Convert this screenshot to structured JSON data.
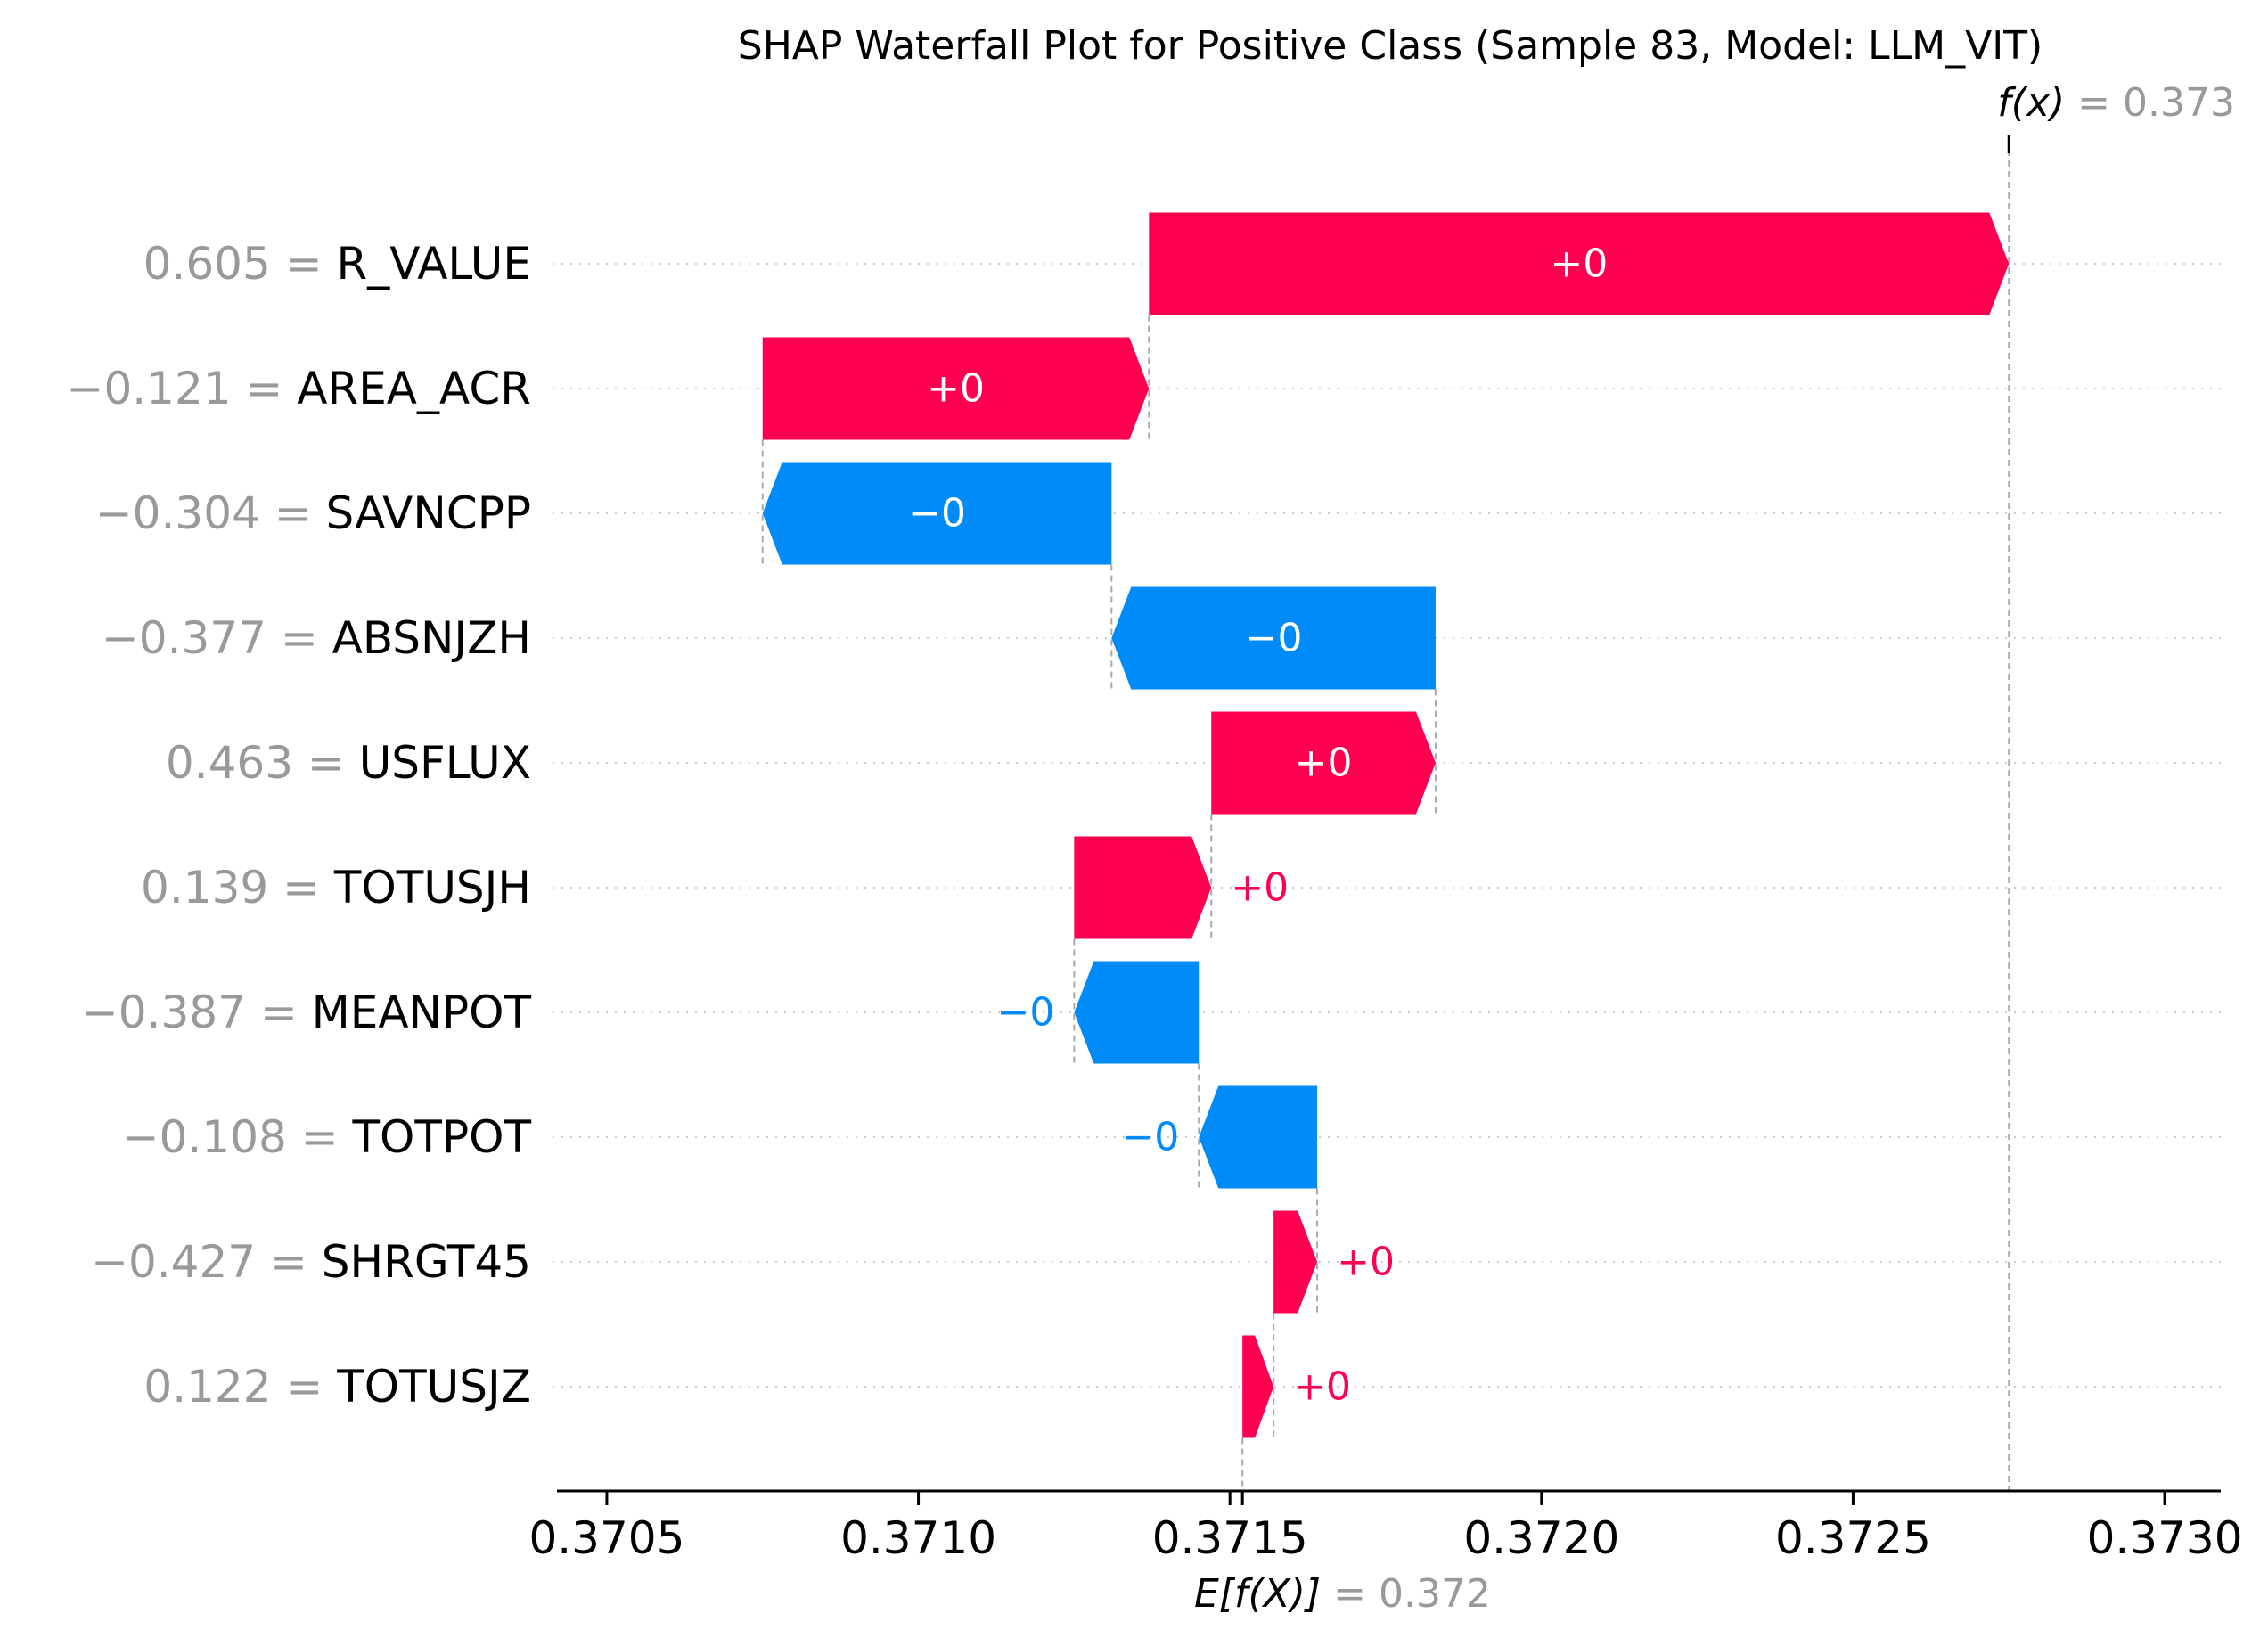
{
  "chart_data": {
    "type": "waterfall",
    "title": "SHAP Waterfall Plot for Positive Class (Sample 83, Model: LLM_VIT)",
    "fx": {
      "prefix": "f(x)",
      "value_text": "= 0.373",
      "value": 0.37275
    },
    "base": {
      "prefix": "E[f(X)]",
      "value_text": "= 0.372",
      "value": 0.37152
    },
    "xlim": [
      0.37042,
      0.37309
    ],
    "xticks": [
      0.3705,
      0.371,
      0.3715,
      0.372,
      0.3725,
      0.373
    ],
    "xtick_labels": [
      "0.3705",
      "0.3710",
      "0.3715",
      "0.3720",
      "0.3725",
      "0.3730"
    ],
    "features": [
      {
        "value_text": "0.605 =",
        "name": "R_VALUE",
        "start": 0.37137,
        "end": 0.37275,
        "label": "+0",
        "sign": "positive"
      },
      {
        "value_text": "−0.121 =",
        "name": "AREA_ACR",
        "start": 0.37075,
        "end": 0.37137,
        "label": "+0",
        "sign": "positive"
      },
      {
        "value_text": "−0.304 =",
        "name": "SAVNCPP",
        "start": 0.37131,
        "end": 0.37075,
        "label": "−0",
        "sign": "negative"
      },
      {
        "value_text": "−0.377 =",
        "name": "ABSNJZH",
        "start": 0.37183,
        "end": 0.37131,
        "label": "−0",
        "sign": "negative"
      },
      {
        "value_text": "0.463 =",
        "name": "USFLUX",
        "start": 0.37147,
        "end": 0.37183,
        "label": "+0",
        "sign": "positive"
      },
      {
        "value_text": "0.139 =",
        "name": "TOTUSJH",
        "start": 0.37125,
        "end": 0.37147,
        "label": "+0",
        "sign": "positive"
      },
      {
        "value_text": "−0.387 =",
        "name": "MEANPOT",
        "start": 0.37145,
        "end": 0.37125,
        "label": "−0",
        "sign": "negative"
      },
      {
        "value_text": "−0.108 =",
        "name": "TOTPOT",
        "start": 0.37164,
        "end": 0.37145,
        "label": "−0",
        "sign": "negative"
      },
      {
        "value_text": "−0.427 =",
        "name": "SHRGT45",
        "start": 0.37157,
        "end": 0.37164,
        "label": "+0",
        "sign": "positive"
      },
      {
        "value_text": "0.122 =",
        "name": "TOTUSJZ",
        "start": 0.37152,
        "end": 0.37157,
        "label": "+0",
        "sign": "positive"
      }
    ],
    "colors": {
      "positive": "#ff0051",
      "negative": "#008bfb",
      "muted": "#999999",
      "text": "#000000",
      "grid": "#cccccc"
    }
  }
}
